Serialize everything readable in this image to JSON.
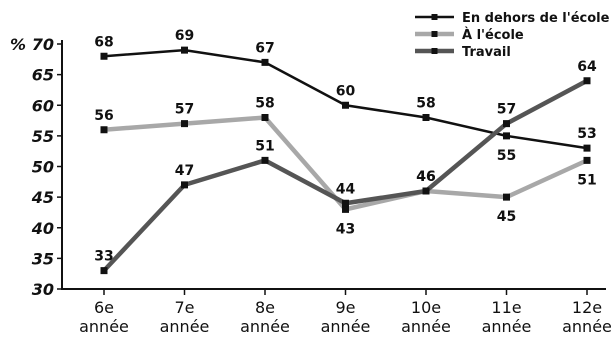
{
  "chart_data": {
    "type": "line",
    "y_unit": "%",
    "ylim": [
      30,
      70
    ],
    "yticks": [
      "30",
      "35",
      "40",
      "45",
      "50",
      "55",
      "60",
      "65",
      "70"
    ],
    "categories": [
      [
        "6e",
        "année"
      ],
      [
        "7e",
        "année"
      ],
      [
        "8e",
        "année"
      ],
      [
        "9e",
        "année"
      ],
      [
        "10e",
        "année"
      ],
      [
        "11e",
        "année"
      ],
      [
        "12e",
        "année"
      ]
    ],
    "series": [
      {
        "name": "En dehors de l'école",
        "color": "#111111",
        "values": [
          68,
          69,
          67,
          60,
          58,
          55,
          53
        ]
      },
      {
        "name": "À l'école",
        "color": "#a8a8a8",
        "values": [
          56,
          57,
          58,
          43,
          46,
          45,
          51
        ]
      },
      {
        "name": "Travail",
        "color": "#555555",
        "values": [
          33,
          47,
          51,
          44,
          46,
          57,
          64
        ]
      }
    ],
    "grid": false,
    "legend_position": "top-right"
  }
}
